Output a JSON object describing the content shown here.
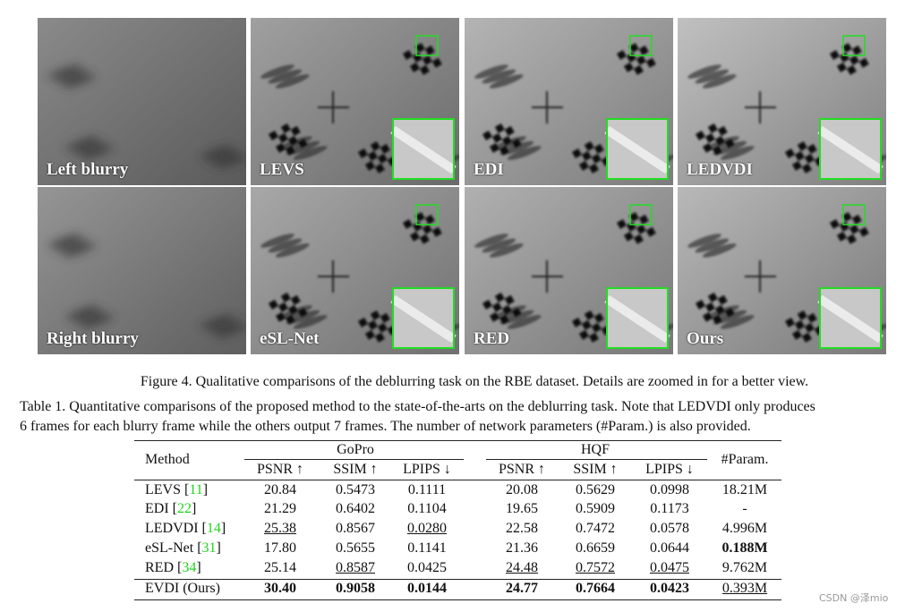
{
  "figure": {
    "panels": [
      {
        "label": "Left blurry"
      },
      {
        "label": "LEVS"
      },
      {
        "label": "EDI"
      },
      {
        "label": "LEDVDI"
      },
      {
        "label": "Right blurry"
      },
      {
        "label": "eSL-Net"
      },
      {
        "label": "RED"
      },
      {
        "label": "Ours"
      }
    ],
    "caption": "Figure 4. Qualitative comparisons of the deblurring task on the RBE dataset. Details are zoomed in for a better view."
  },
  "table": {
    "caption_lines": [
      "Table 1. Quantitative comparisons of the proposed method to the state-of-the-arts on the deblurring task. Note that LEDVDI only produces",
      "6 frames for each blurry frame while the others output 7 frames. The number of network parameters (#Param.) is also provided."
    ],
    "header": {
      "method": "Method",
      "groups": [
        "GoPro",
        "HQF"
      ],
      "metrics": [
        "PSNR ↑",
        "SSIM ↑",
        "LPIPS ↓",
        "PSNR ↑",
        "SSIM ↑",
        "LPIPS ↓"
      ],
      "param": "#Param."
    },
    "rows": [
      {
        "method": [
          {
            "text": "LEVS ["
          },
          {
            "text": "11",
            "cite": true
          },
          {
            "text": "]"
          }
        ],
        "cells": [
          {
            "text": "20.84"
          },
          {
            "text": "0.5473"
          },
          {
            "text": "0.1111"
          },
          {
            "text": "20.08"
          },
          {
            "text": "0.5629"
          },
          {
            "text": "0.0998"
          },
          {
            "text": "18.21M"
          }
        ]
      },
      {
        "method": [
          {
            "text": "EDI ["
          },
          {
            "text": "22",
            "cite": true
          },
          {
            "text": "]"
          }
        ],
        "cells": [
          {
            "text": "21.29"
          },
          {
            "text": "0.6402"
          },
          {
            "text": "0.1104"
          },
          {
            "text": "19.65"
          },
          {
            "text": "0.5909"
          },
          {
            "text": "0.1173"
          },
          {
            "text": "-"
          }
        ]
      },
      {
        "method": [
          {
            "text": "LEDVDI ["
          },
          {
            "text": "14",
            "cite": true
          },
          {
            "text": "]"
          }
        ],
        "cells": [
          {
            "text": "25.38",
            "underline": true
          },
          {
            "text": "0.8567"
          },
          {
            "text": "0.0280",
            "underline": true
          },
          {
            "text": "22.58"
          },
          {
            "text": "0.7472"
          },
          {
            "text": "0.0578"
          },
          {
            "text": "4.996M"
          }
        ]
      },
      {
        "method": [
          {
            "text": "eSL-Net ["
          },
          {
            "text": "31",
            "cite": true
          },
          {
            "text": "]"
          }
        ],
        "cells": [
          {
            "text": "17.80"
          },
          {
            "text": "0.5655"
          },
          {
            "text": "0.1141"
          },
          {
            "text": "21.36"
          },
          {
            "text": "0.6659"
          },
          {
            "text": "0.0644"
          },
          {
            "text": "0.188M",
            "bold": true
          }
        ]
      },
      {
        "method": [
          {
            "text": "RED ["
          },
          {
            "text": "34",
            "cite": true
          },
          {
            "text": "]"
          }
        ],
        "cells": [
          {
            "text": "25.14"
          },
          {
            "text": "0.8587",
            "underline": true
          },
          {
            "text": "0.0425"
          },
          {
            "text": "24.48",
            "underline": true
          },
          {
            "text": "0.7572",
            "underline": true
          },
          {
            "text": "0.0475",
            "underline": true
          },
          {
            "text": "9.762M"
          }
        ]
      },
      {
        "method": [
          {
            "text": "EVDI (Ours)"
          }
        ],
        "cells": [
          {
            "text": "30.40",
            "bold": true
          },
          {
            "text": "0.9058",
            "bold": true
          },
          {
            "text": "0.0144",
            "bold": true
          },
          {
            "text": "24.77",
            "bold": true
          },
          {
            "text": "0.7664",
            "bold": true
          },
          {
            "text": "0.0423",
            "bold": true
          },
          {
            "text": "0.393M",
            "underline": true
          }
        ]
      }
    ]
  },
  "watermark": "CSDN @泽mio"
}
